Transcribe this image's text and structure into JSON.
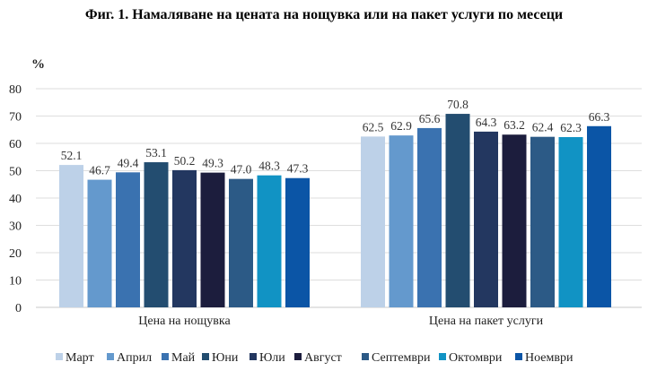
{
  "chart_data": {
    "type": "bar",
    "title": "Фиг. 1. Намаляване на цената на нощувка или на пакет услуги по месеци",
    "ylabel": "%",
    "xlabel": "",
    "ylim": [
      0,
      80
    ],
    "yticks": [
      0,
      10,
      20,
      30,
      40,
      50,
      60,
      70,
      80
    ],
    "grid": true,
    "legend_position": "bottom",
    "categories": [
      "Цена на нощувка",
      "Цена на пакет услуги"
    ],
    "series": [
      {
        "name": "Март",
        "color": "#bdd1e8",
        "values": [
          52.1,
          62.5
        ]
      },
      {
        "name": "Април",
        "color": "#6499cd",
        "values": [
          46.7,
          62.9
        ]
      },
      {
        "name": "Май",
        "color": "#3a72b0",
        "values": [
          49.4,
          65.6
        ]
      },
      {
        "name": "Юни",
        "color": "#234d70",
        "values": [
          53.1,
          70.8
        ]
      },
      {
        "name": "Юли",
        "color": "#233760",
        "values": [
          50.2,
          64.3
        ]
      },
      {
        "name": "Август",
        "color": "#1c1d3d",
        "values": [
          49.3,
          63.2
        ]
      },
      {
        "name": "Септември",
        "color": "#2c5a86",
        "values": [
          47.0,
          62.4
        ]
      },
      {
        "name": "Октомври",
        "color": "#1193c4",
        "values": [
          48.3,
          62.3
        ]
      },
      {
        "name": "Ноември",
        "color": "#0b55a6",
        "values": [
          47.3,
          66.3
        ]
      }
    ]
  }
}
